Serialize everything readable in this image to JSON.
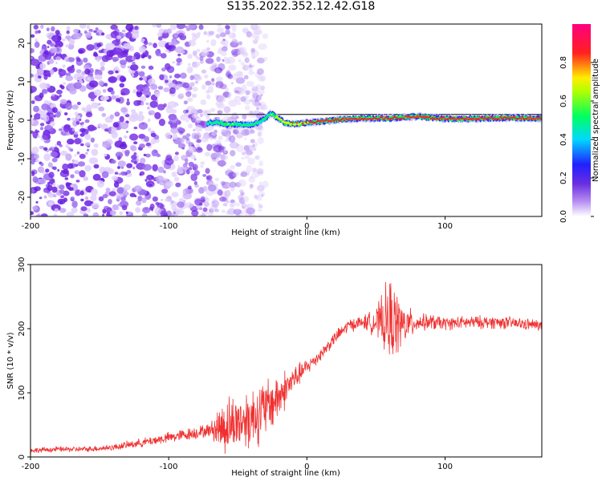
{
  "figure": {
    "title": "S135.2022.352.12.42.G18"
  },
  "chart_data": [
    {
      "type": "heatmap",
      "title": "",
      "xlabel": "Height of straight line (km)",
      "ylabel": "Frequency (Hz)",
      "xlim": [
        -200,
        170
      ],
      "ylim": [
        -25,
        25
      ],
      "xticks": [
        -200,
        -100,
        0,
        100
      ],
      "yticks": [
        -20,
        -10,
        0,
        10,
        20
      ],
      "colorbar": {
        "label": "Normalized spectral amplitude",
        "range": [
          0,
          1
        ],
        "ticks": [
          "0.0",
          "0.2",
          "0.4",
          "0.6",
          "0.8"
        ],
        "colormap": [
          "#ffffff",
          "#7b3fe4",
          "#2020ff",
          "#00e0ff",
          "#00ff40",
          "#ffff00",
          "#ff2020",
          "#ff0080"
        ]
      },
      "noise_region": {
        "x_range": [
          -200,
          -40
        ],
        "f_range": [
          -25,
          25
        ],
        "amplitude": 0.1
      },
      "signal_track": [
        {
          "x": -72,
          "f": -0.8,
          "a": 0.45
        },
        {
          "x": -65,
          "f": -0.5,
          "a": 0.5
        },
        {
          "x": -58,
          "f": -1.2,
          "a": 0.55
        },
        {
          "x": -50,
          "f": -1.0,
          "a": 0.5
        },
        {
          "x": -42,
          "f": -1.3,
          "a": 0.45
        },
        {
          "x": -36,
          "f": -0.6,
          "a": 0.45
        },
        {
          "x": -30,
          "f": 0.5,
          "a": 0.5
        },
        {
          "x": -26,
          "f": 1.8,
          "a": 0.55
        },
        {
          "x": -22,
          "f": 0.8,
          "a": 0.6
        },
        {
          "x": -15,
          "f": -0.8,
          "a": 0.7
        },
        {
          "x": -8,
          "f": -1.0,
          "a": 0.75
        },
        {
          "x": 0,
          "f": -0.6,
          "a": 0.8
        },
        {
          "x": 10,
          "f": -0.3,
          "a": 0.85
        },
        {
          "x": 25,
          "f": 0.2,
          "a": 0.85
        },
        {
          "x": 40,
          "f": 0.5,
          "a": 0.9
        },
        {
          "x": 60,
          "f": 0.5,
          "a": 0.95
        },
        {
          "x": 80,
          "f": 1.0,
          "a": 0.95
        },
        {
          "x": 95,
          "f": 0.5,
          "a": 0.9
        },
        {
          "x": 110,
          "f": 0.3,
          "a": 0.9
        },
        {
          "x": 130,
          "f": 0.5,
          "a": 0.9
        },
        {
          "x": 150,
          "f": 0.6,
          "a": 0.9
        },
        {
          "x": 170,
          "f": 0.5,
          "a": 0.9
        }
      ],
      "reference_line_f": 1.5
    },
    {
      "type": "line",
      "title": "",
      "xlabel": "Height of straight line (km)",
      "ylabel": "SNR (10 * v/v)",
      "xlim": [
        -200,
        170
      ],
      "ylim": [
        0,
        300
      ],
      "xticks": [
        -200,
        -100,
        0,
        100
      ],
      "yticks": [
        0,
        100,
        200,
        300
      ],
      "color": "#f03030",
      "series": [
        {
          "x": [
            -200,
            -180,
            -160,
            -140,
            -120,
            -100,
            -80,
            -70,
            -60,
            -50,
            -40,
            -30,
            -20,
            -10,
            0,
            10,
            20,
            30,
            40,
            50,
            60,
            70,
            80,
            90,
            100,
            120,
            140,
            170
          ],
          "values": [
            10,
            12,
            12,
            15,
            22,
            30,
            38,
            42,
            48,
            55,
            62,
            75,
            95,
            120,
            140,
            160,
            185,
            205,
            210,
            210,
            212,
            205,
            210,
            210,
            208,
            210,
            210,
            205
          ],
          "noise_amplitude": [
            5,
            5,
            5,
            6,
            8,
            10,
            12,
            12,
            55,
            50,
            60,
            55,
            45,
            25,
            15,
            12,
            12,
            12,
            12,
            25,
            80,
            40,
            15,
            15,
            12,
            12,
            12,
            10
          ]
        }
      ]
    }
  ]
}
